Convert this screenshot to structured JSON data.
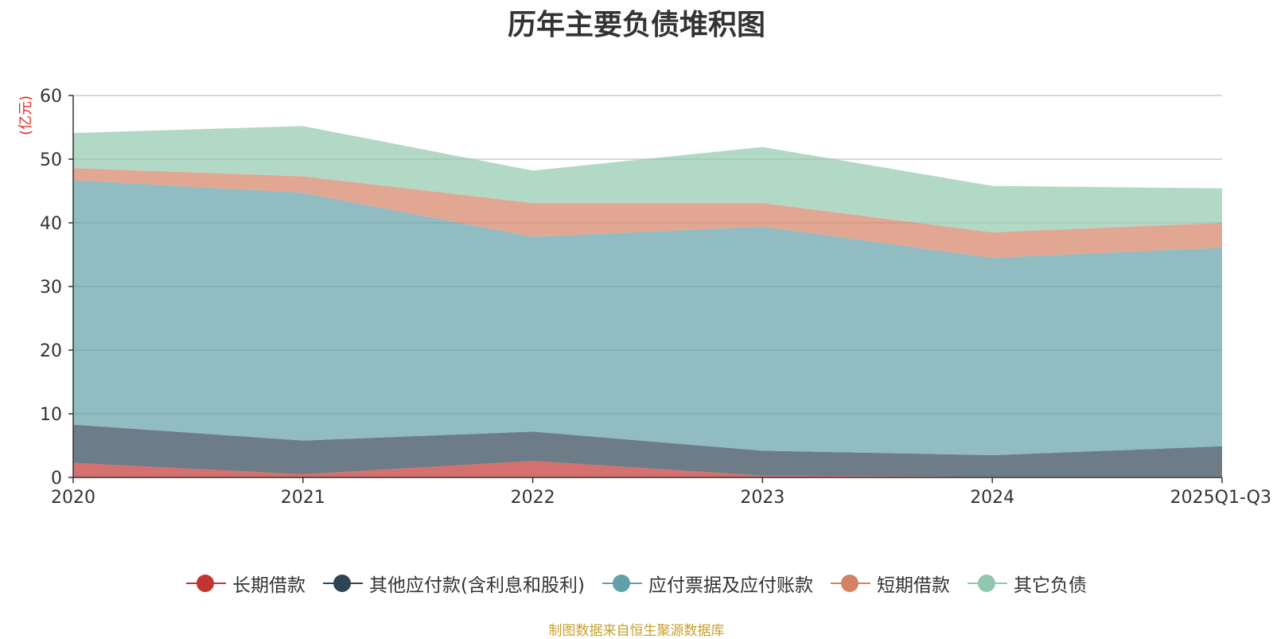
{
  "chart_data": {
    "type": "area",
    "stacked": true,
    "title": "历年主要负债堆积图",
    "ylabel": "(亿元)",
    "xlabel": "",
    "categories": [
      "2020",
      "2021",
      "2022",
      "2023",
      "2024",
      "2025Q1-Q3"
    ],
    "ylim": [
      0,
      60
    ],
    "yticks": [
      0,
      10,
      20,
      30,
      40,
      50,
      60
    ],
    "grid": true,
    "legend_position": "bottom",
    "series": [
      {
        "name": "长期借款",
        "color": "#c23531",
        "values": [
          2.3,
          0.5,
          2.6,
          0.3,
          0.1,
          0.1
        ]
      },
      {
        "name": "其他应付款(含利息和股利)",
        "color": "#2f4554",
        "values": [
          6.0,
          5.3,
          4.6,
          3.9,
          3.4,
          4.8
        ]
      },
      {
        "name": "应付票据及应付账款",
        "color": "#61a0a8",
        "values": [
          38.4,
          38.9,
          30.6,
          35.2,
          31.0,
          31.2
        ]
      },
      {
        "name": "短期借款",
        "color": "#d48265",
        "values": [
          1.9,
          2.6,
          5.3,
          3.7,
          4.0,
          3.9
        ]
      },
      {
        "name": "其它负债",
        "color": "#91c7ae",
        "values": [
          5.5,
          7.9,
          5.1,
          8.8,
          7.3,
          5.4
        ]
      }
    ],
    "source": "制图数据来自恒生聚源数据库"
  }
}
